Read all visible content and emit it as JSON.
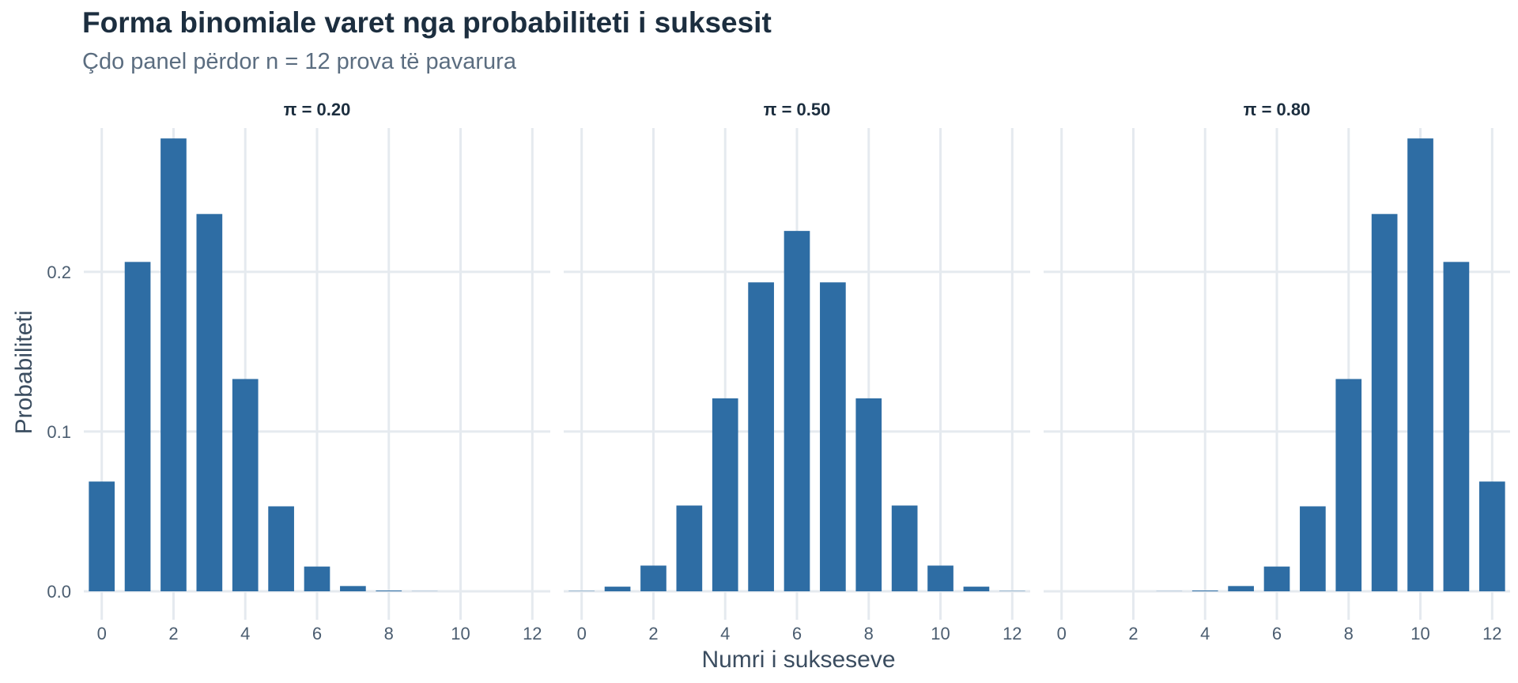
{
  "title": "Forma binomiale varet nga probabiliteti i suksesit",
  "subtitle": "Çdo panel përdor n = 12 prova të pavarura",
  "colors": {
    "bar": "#2e6da4",
    "grid": "#e5eaef",
    "text": "#1c2e3f",
    "muted": "#5b6d80"
  },
  "chart_data": {
    "type": "bar",
    "xlabel": "Numri i sukseseve",
    "ylabel": "Probabiliteti",
    "xlim": [
      -0.5,
      12.5
    ],
    "ylim": [
      0,
      0.29
    ],
    "x_ticks": [
      "0",
      "2",
      "4",
      "6",
      "8",
      "10",
      "12"
    ],
    "y_ticks": [
      "0.0",
      "0.1",
      "0.2"
    ],
    "grid": true,
    "categories": [
      0,
      1,
      2,
      3,
      4,
      5,
      6,
      7,
      8,
      9,
      10,
      11,
      12
    ],
    "panels": [
      {
        "label": "π = 0.20",
        "values": [
          0.0687,
          0.2062,
          0.2835,
          0.2362,
          0.1329,
          0.0532,
          0.0155,
          0.0033,
          0.0005,
          0.0001,
          0.0,
          0.0,
          0.0
        ]
      },
      {
        "label": "π = 0.50",
        "values": [
          0.0002,
          0.0029,
          0.0161,
          0.0537,
          0.1208,
          0.1934,
          0.2256,
          0.1934,
          0.1208,
          0.0537,
          0.0161,
          0.0029,
          0.0002
        ]
      },
      {
        "label": "π = 0.80",
        "values": [
          0.0,
          0.0,
          0.0,
          0.0001,
          0.0005,
          0.0033,
          0.0155,
          0.0532,
          0.1329,
          0.2362,
          0.2835,
          0.2062,
          0.0687
        ]
      }
    ]
  }
}
